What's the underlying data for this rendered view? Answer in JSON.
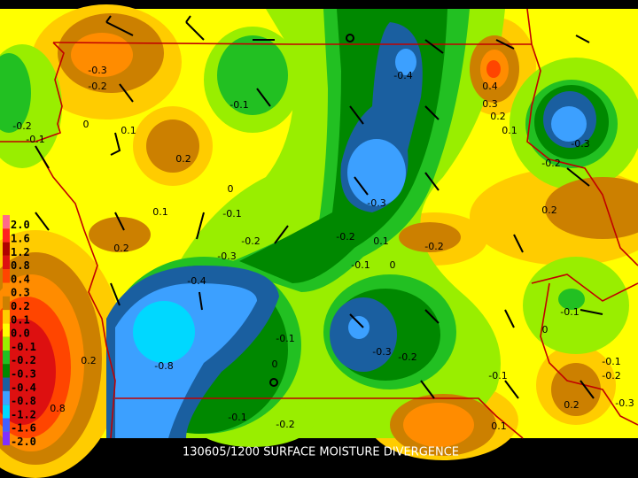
{
  "title": "130605/1200 SURFACE MOISTURE DIVERGENCE",
  "legend": {
    "labels": [
      "2.0",
      "1.6",
      "1.2",
      "0.8",
      "0.4",
      "0.3",
      "0.2",
      "0.1",
      "0.0",
      "-0.1",
      "-0.2",
      "-0.3",
      "-0.4",
      "-0.8",
      "-1.2",
      "-1.6",
      "-2.0"
    ]
  },
  "contour_labels": [
    "-0.3",
    "-0.2",
    "-0.2",
    "-0.1",
    "0",
    "0.1",
    "0.2",
    "-0.1",
    "-0.4",
    "0.4",
    "0.3",
    "0.2",
    "0.1",
    "-0.3",
    "-0.2",
    "0",
    "0.1",
    "-0.1",
    "-0.3",
    "0.2",
    "-0.2",
    "-0.3",
    "0.2",
    "-0.2",
    "0.1",
    "-0.2",
    "-0.1",
    "0",
    "-0.4",
    "-0.1",
    "0",
    "-0.1",
    "-0.8",
    "0.2",
    "-0.3",
    "-0.2",
    "0",
    "-0.1",
    "-0.1",
    "-0.2",
    "0.2",
    "-0.3",
    "0.8",
    "-0.1",
    "-0.2",
    "0.1"
  ]
}
